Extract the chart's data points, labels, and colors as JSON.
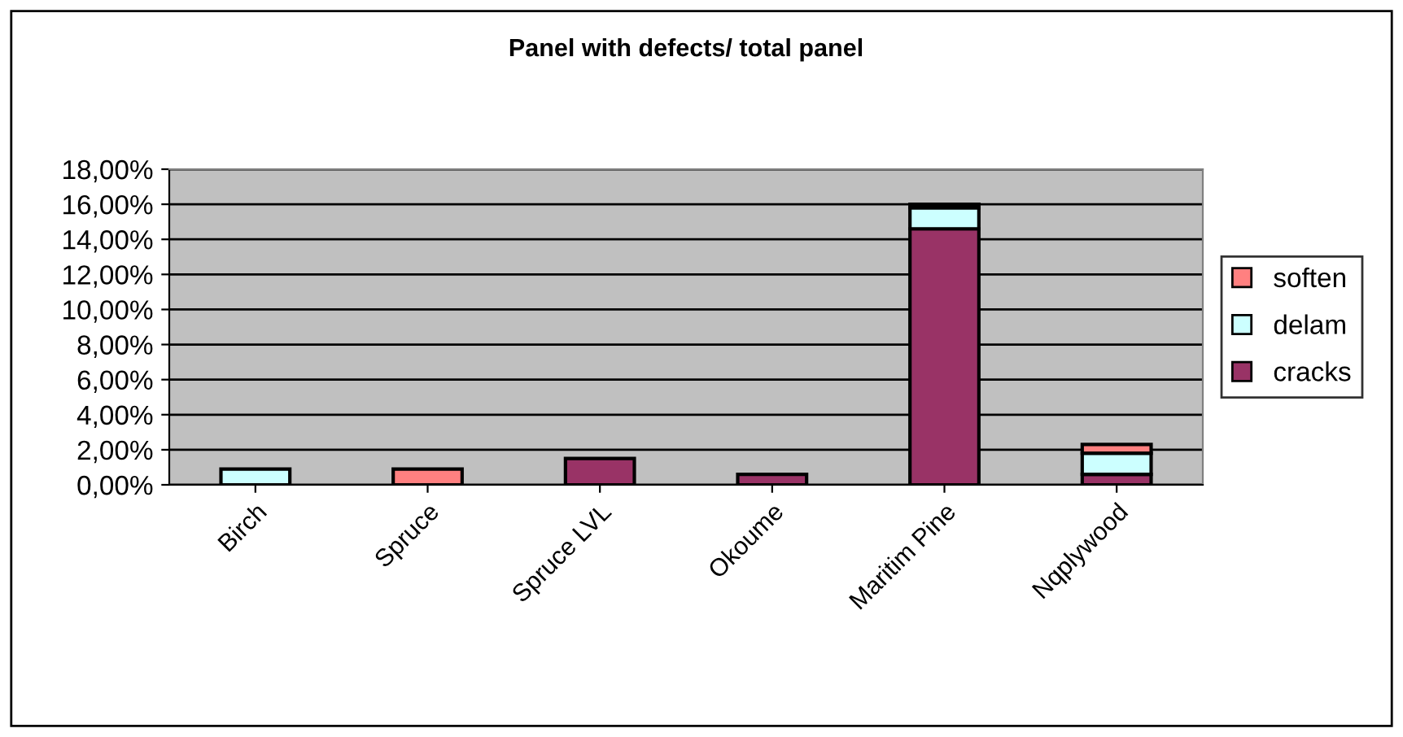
{
  "chart_data": {
    "type": "bar",
    "title": "Panel with defects/ total panel",
    "categories": [
      "Birch",
      "Spruce",
      "Spruce LVL",
      "Okoume",
      "Maritim Pine",
      "Nqplywood"
    ],
    "stacked": true,
    "series": [
      {
        "name": "cracks",
        "color": "#993366",
        "values": [
          null,
          null,
          1.5,
          0.6,
          14.6,
          0.6
        ]
      },
      {
        "name": "delam",
        "color": "#ccffff",
        "values": [
          0.9,
          null,
          null,
          null,
          1.2,
          1.2
        ]
      },
      {
        "name": "soften",
        "color": "#ff8080",
        "values": [
          null,
          0.9,
          null,
          null,
          0.2,
          0.5
        ]
      }
    ],
    "ylim": [
      0,
      18
    ],
    "yticks": [
      {
        "value": 0,
        "label": "0,00%"
      },
      {
        "value": 2,
        "label": "2,00%"
      },
      {
        "value": 4,
        "label": "4,00%"
      },
      {
        "value": 6,
        "label": "6,00%"
      },
      {
        "value": 8,
        "label": "8,00%"
      },
      {
        "value": 10,
        "label": "10,00%"
      },
      {
        "value": 12,
        "label": "12,00%"
      },
      {
        "value": 14,
        "label": "14,00%"
      },
      {
        "value": 16,
        "label": "16,00%"
      },
      {
        "value": 18,
        "label": "18,00%"
      }
    ],
    "grid": "y",
    "legend": "right"
  }
}
